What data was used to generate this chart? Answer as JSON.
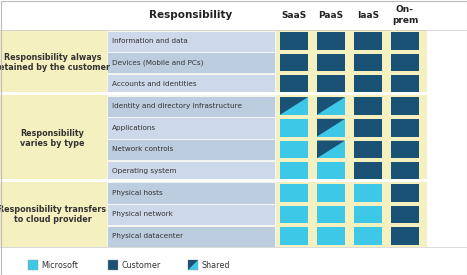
{
  "title": "Responsibility",
  "col_headers": [
    "SaaS",
    "PaaS",
    "IaaS",
    "On-\nprem"
  ],
  "rows": [
    "Information and data",
    "Devices (Mobile and PCs)",
    "Accounts and identities",
    "Identity and directory infrastructure",
    "Applications",
    "Network controls",
    "Operating system",
    "Physical hosts",
    "Physical network",
    "Physical datacenter"
  ],
  "band_defs": [
    {
      "text": "Responsibility always\nretained by the customer",
      "rows": [
        0,
        1,
        2
      ],
      "bg": "#f5f0c0"
    },
    {
      "text": "Responsibility\nvaries by type",
      "rows": [
        3,
        4,
        5,
        6
      ],
      "bg": "#f5f0c0"
    },
    {
      "text": "Responsibility transfers\nto cloud provider",
      "rows": [
        7,
        8,
        9
      ],
      "bg": "#f5f0c0"
    }
  ],
  "cell_types": [
    [
      "customer",
      "customer",
      "customer",
      "customer"
    ],
    [
      "customer",
      "customer",
      "customer",
      "customer"
    ],
    [
      "customer",
      "customer",
      "customer",
      "customer"
    ],
    [
      "shared",
      "shared",
      "customer",
      "customer"
    ],
    [
      "microsoft",
      "shared",
      "customer",
      "customer"
    ],
    [
      "microsoft",
      "shared",
      "customer",
      "customer"
    ],
    [
      "microsoft",
      "microsoft",
      "customer",
      "customer"
    ],
    [
      "microsoft",
      "microsoft",
      "microsoft",
      "customer"
    ],
    [
      "microsoft",
      "microsoft",
      "microsoft",
      "customer"
    ],
    [
      "microsoft",
      "microsoft",
      "microsoft",
      "customer"
    ]
  ],
  "microsoft_color": "#3ec8e8",
  "customer_color": "#1a5276",
  "shared_light": "#3ec8e8",
  "shared_dark": "#1a5276",
  "row_light": "#cdd8ea",
  "row_dark": "#bccde0",
  "band_color": "#f5f0c0",
  "sep_color": "#ffffff",
  "bg_color": "#ffffff",
  "border_color": "#bbbbbb",
  "text_color": "#222222",
  "label_color": "#333333"
}
